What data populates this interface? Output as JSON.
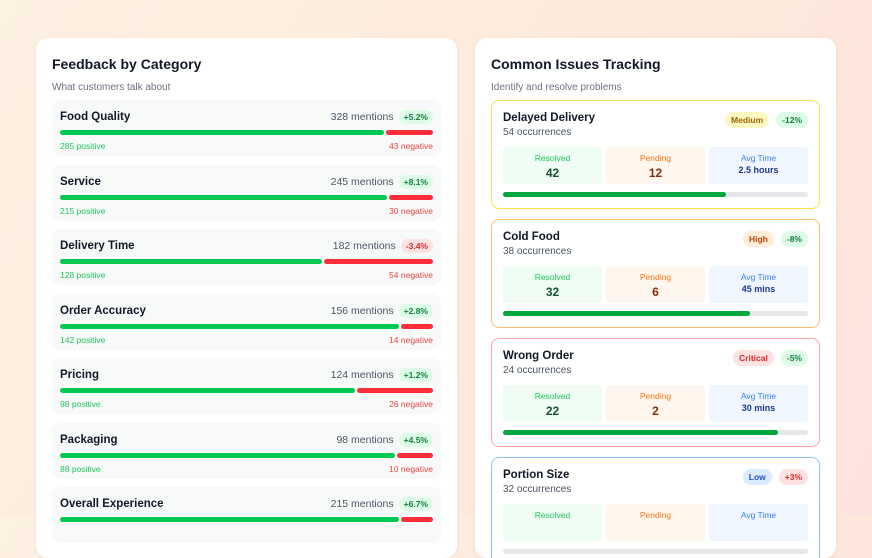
{
  "feedback": {
    "title": "Feedback by Category",
    "subtitle": "What customers talk about",
    "categories": [
      {
        "name": "Food Quality",
        "mentions": "328 mentions",
        "change": "+5.2%",
        "trend": "up",
        "positive": "285 positive",
        "negative": "43 negative",
        "positive_fraction": 0.869
      },
      {
        "name": "Service",
        "mentions": "245 mentions",
        "change": "+8.1%",
        "trend": "up",
        "positive": "215 positive",
        "negative": "30 negative",
        "positive_fraction": 0.878
      },
      {
        "name": "Delivery Time",
        "mentions": "182 mentions",
        "change": "-3.4%",
        "trend": "down",
        "positive": "128 positive",
        "negative": "54 negative",
        "positive_fraction": 0.703
      },
      {
        "name": "Order Accuracy",
        "mentions": "156 mentions",
        "change": "+2.8%",
        "trend": "up",
        "positive": "142 positive",
        "negative": "14 negative",
        "positive_fraction": 0.91
      },
      {
        "name": "Pricing",
        "mentions": "124 mentions",
        "change": "+1.2%",
        "trend": "up",
        "positive": "98 positive",
        "negative": "26 negative",
        "positive_fraction": 0.79
      },
      {
        "name": "Packaging",
        "mentions": "98 mentions",
        "change": "+4.5%",
        "trend": "up",
        "positive": "88 positive",
        "negative": "10 negative",
        "positive_fraction": 0.898
      },
      {
        "name": "Overall Experience",
        "mentions": "215 mentions",
        "change": "+6.7%",
        "trend": "up",
        "positive_fraction": 0.91
      }
    ]
  },
  "issues": {
    "title": "Common Issues Tracking",
    "subtitle": "Identify and resolve problems",
    "labels": {
      "resolved": "Resolved",
      "pending": "Pending",
      "avg": "Avg Time"
    },
    "items": [
      {
        "name": "Delayed Delivery",
        "occurrences": "54 occurrences",
        "severity": "Medium",
        "change": "-12%",
        "trend": "good",
        "resolved": "42",
        "pending": "12",
        "avg_time": "2.5 hours",
        "progress": 0.73,
        "border": "#fde047",
        "sev_bg": "#fef9c3",
        "sev_fg": "#a16207"
      },
      {
        "name": "Cold Food",
        "occurrences": "38 occurrences",
        "severity": "High",
        "change": "-8%",
        "trend": "good",
        "resolved": "32",
        "pending": "6",
        "avg_time": "45 mins",
        "progress": 0.81,
        "border": "#fdba74",
        "sev_bg": "#ffedd5",
        "sev_fg": "#c2410c"
      },
      {
        "name": "Wrong Order",
        "occurrences": "24 occurrences",
        "severity": "Critical",
        "change": "-5%",
        "trend": "good",
        "resolved": "22",
        "pending": "2",
        "avg_time": "30 mins",
        "progress": 0.9,
        "border": "#fca5a5",
        "sev_bg": "#fee2e2",
        "sev_fg": "#dc2626"
      },
      {
        "name": "Portion Size",
        "occurrences": "32 occurrences",
        "severity": "Low",
        "change": "+3%",
        "trend": "bad",
        "resolved": "",
        "pending": "",
        "avg_time": "",
        "progress": 0,
        "border": "#93c5fd",
        "sev_bg": "#dbeafe",
        "sev_fg": "#1d4ed8"
      }
    ]
  }
}
